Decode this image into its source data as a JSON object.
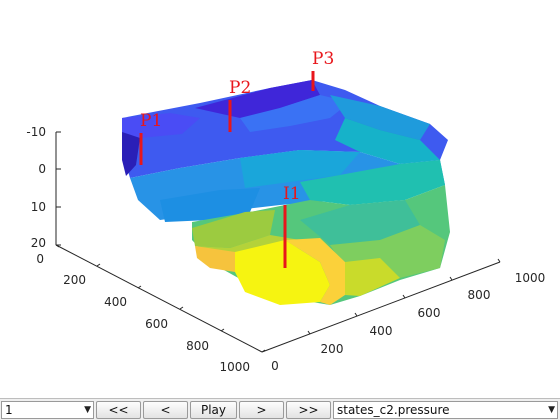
{
  "axes": {
    "z_ticks": [
      "-10",
      "0",
      "10",
      "20"
    ],
    "x_ticks": [
      "0",
      "200",
      "400",
      "600",
      "800",
      "1000"
    ],
    "y_ticks": [
      "0",
      "200",
      "400",
      "600",
      "800",
      "1000"
    ]
  },
  "wells": [
    {
      "label": "P1"
    },
    {
      "label": "P2"
    },
    {
      "label": "P3"
    },
    {
      "label": "I1"
    }
  ],
  "colors": {
    "well_marker": "#e8161b",
    "low_pressure": "#3f26d9",
    "mid_pressure": "#17b1c6",
    "high_pressure": "#f7f60f"
  },
  "controls": {
    "step_select_value": "1",
    "first_label": "<<",
    "prev_label": "<",
    "play_label": "Play",
    "next_label": ">",
    "last_label": ">>",
    "field_select_value": "states_c2.pressure"
  }
}
